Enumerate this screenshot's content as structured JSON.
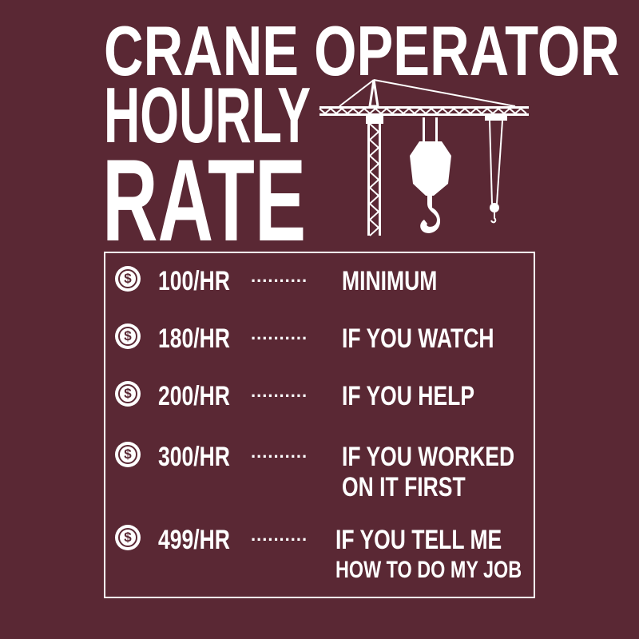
{
  "title": {
    "line1": "CRANE OPERATOR",
    "line2": "HOURLY",
    "line3": "RATE"
  },
  "icons": {
    "crane": "tower-crane-icon",
    "coin": "dollar-coin-icon"
  },
  "colors": {
    "background": "#5a2834",
    "foreground": "#ffffff"
  },
  "rates": [
    {
      "symbol": "$",
      "rate": "100/HR",
      "dots": "..........",
      "description": "MINIMUM"
    },
    {
      "symbol": "$",
      "rate": "180/HR",
      "dots": "..........",
      "description": "IF YOU WATCH"
    },
    {
      "symbol": "$",
      "rate": "200/HR",
      "dots": "..........",
      "description": "IF YOU HELP"
    },
    {
      "symbol": "$",
      "rate": "300/HR",
      "dots": "..........",
      "description": "IF YOU WORKED",
      "description2": "ON IT FIRST"
    },
    {
      "symbol": "$",
      "rate": "499/HR",
      "dots": "..........",
      "description": "IF YOU TELL ME",
      "description2": "HOW TO DO MY JOB"
    }
  ]
}
